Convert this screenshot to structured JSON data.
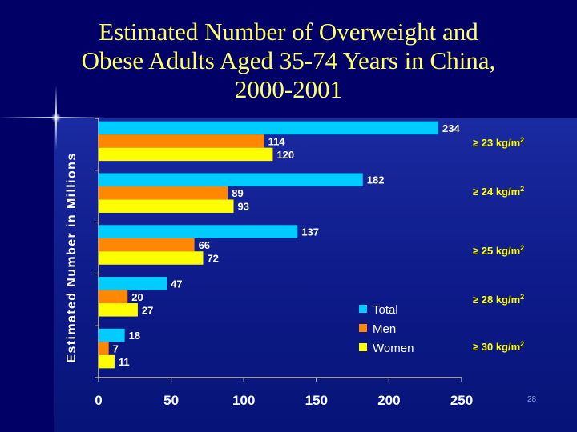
{
  "slide": {
    "title": "Estimated Number of Overweight and\nObese Adults Aged 35-74 Years in China,\n2000-2001",
    "page_number": "28"
  },
  "chart_data": {
    "type": "bar",
    "orientation": "horizontal",
    "ylabel": "Estimated Number in Millions",
    "xlim": [
      0,
      250
    ],
    "x_ticks": [
      "0",
      "50",
      "100",
      "150",
      "200",
      "250"
    ],
    "categories": [
      "≥ 23 kg/m2",
      "≥ 24 kg/m2",
      "≥ 25 kg/m2",
      "≥ 28 kg/m2",
      "≥ 30 kg/m2"
    ],
    "category_labels": [
      {
        "prefix": "≥ ",
        "base": "23 kg/m",
        "sup": "2"
      },
      {
        "prefix": "≥ ",
        "base": "24 kg/m",
        "sup": "2"
      },
      {
        "prefix": "≥ ",
        "base": "25 kg/m",
        "sup": "2"
      },
      {
        "prefix": "≥ ",
        "base": "28 kg/m",
        "sup": "2"
      },
      {
        "prefix": "≥ ",
        "base": "30 kg/m",
        "sup": "2"
      }
    ],
    "series": [
      {
        "name": "Total",
        "color": "#00ccff",
        "values": [
          234,
          182,
          137,
          47,
          18
        ]
      },
      {
        "name": "Men",
        "color": "#ff8800",
        "values": [
          114,
          89,
          66,
          20,
          7
        ]
      },
      {
        "name": "Women",
        "color": "#ffff00",
        "values": [
          120,
          93,
          72,
          27,
          11
        ]
      }
    ],
    "legend_position": "bottom-right",
    "grid": false,
    "text_color": "#ffffff",
    "label_color": "#ffff00"
  }
}
